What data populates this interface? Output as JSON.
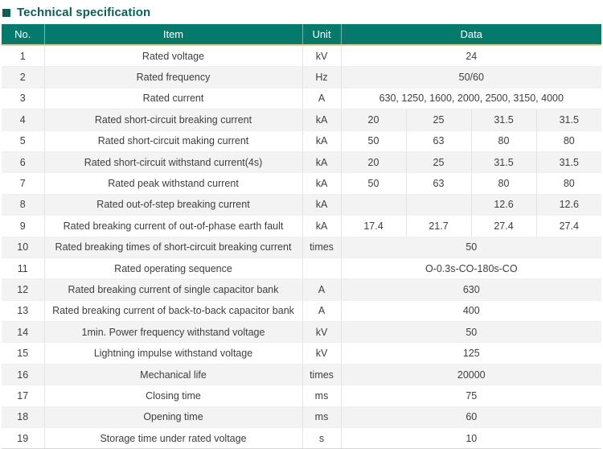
{
  "title": "Technical specification",
  "colors": {
    "header_bg": "#047a6c",
    "title_text": "#0b6055",
    "header_underline": "#e8c896",
    "alt_row_bg": "#f3f3f3",
    "body_text": "#3e3e3e"
  },
  "table": {
    "headers": [
      "No.",
      "Item",
      "Unit",
      "Data"
    ],
    "rows": [
      {
        "no": "1",
        "item": "Rated voltage",
        "unit": "kV",
        "data": [
          "24"
        ]
      },
      {
        "no": "2",
        "item": "Rated frequency",
        "unit": "Hz",
        "data": [
          "50/60"
        ]
      },
      {
        "no": "3",
        "item": "Rated current",
        "unit": "A",
        "data": [
          "630, 1250, 1600, 2000, 2500, 3150, 4000"
        ]
      },
      {
        "no": "4",
        "item": "Rated short-circuit breaking current",
        "unit": "kA",
        "data": [
          "20",
          "25",
          "31.5",
          "31.5"
        ]
      },
      {
        "no": "5",
        "item": "Rated short-circuit making current",
        "unit": "kA",
        "data": [
          "50",
          "63",
          "80",
          "80"
        ]
      },
      {
        "no": "6",
        "item": "Rated short-circuit withstand current(4s)",
        "unit": "kA",
        "data": [
          "20",
          "25",
          "31.5",
          "31.5"
        ]
      },
      {
        "no": "7",
        "item": "Rated peak withstand current",
        "unit": "kA",
        "data": [
          "50",
          "63",
          "80",
          "80"
        ]
      },
      {
        "no": "8",
        "item": "Rated out-of-step breaking current",
        "unit": "kA",
        "data": [
          "",
          "",
          "12.6",
          "12.6"
        ]
      },
      {
        "no": "9",
        "item": "Rated breaking current of out-of-phase earth fault",
        "unit": "kA",
        "data": [
          "17.4",
          "21.7",
          "27.4",
          "27.4"
        ]
      },
      {
        "no": "10",
        "item": "Rated breaking times of short-circuit breaking current",
        "unit": "times",
        "data": [
          "50"
        ]
      },
      {
        "no": "11",
        "item": "Rated operating sequence",
        "unit": "",
        "data": [
          "O-0.3s-CO-180s-CO"
        ]
      },
      {
        "no": "12",
        "item": "Rated breaking current of single capacitor bank",
        "unit": "A",
        "data": [
          "630"
        ]
      },
      {
        "no": "13",
        "item": "Rated breaking current of back-to-back capacitor bank",
        "unit": "A",
        "data": [
          "400"
        ]
      },
      {
        "no": "14",
        "item": "1min. Power frequency withstand voltage",
        "unit": "kV",
        "data": [
          "50"
        ]
      },
      {
        "no": "15",
        "item": "Lightning impulse withstand voltage",
        "unit": "kV",
        "data": [
          "125"
        ]
      },
      {
        "no": "16",
        "item": "Mechanical life",
        "unit": "times",
        "data": [
          "20000"
        ]
      },
      {
        "no": "17",
        "item": "Closing time",
        "unit": "ms",
        "data": [
          "75"
        ]
      },
      {
        "no": "18",
        "item": "Opening time",
        "unit": "ms",
        "data": [
          "60"
        ]
      },
      {
        "no": "19",
        "item": "Storage time under rated voltage",
        "unit": "s",
        "data": [
          "10"
        ]
      }
    ]
  }
}
